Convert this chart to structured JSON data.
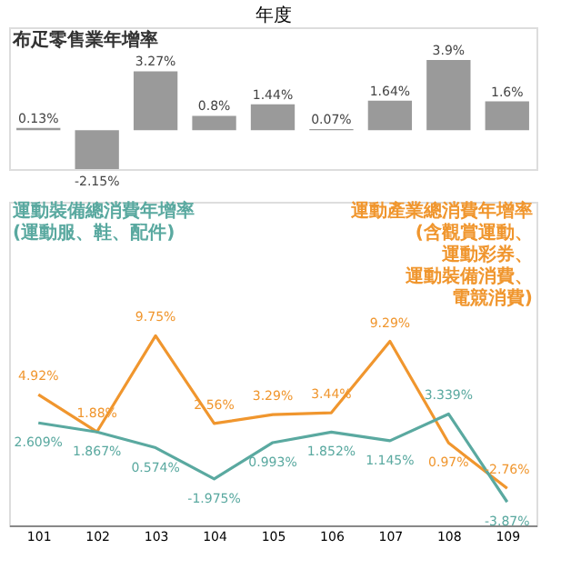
{
  "chart_data": [
    {
      "type": "bar",
      "title": "布疋零售業年增率",
      "xlabel": "年度",
      "categories": [
        "101",
        "102",
        "103",
        "104",
        "105",
        "106",
        "107",
        "108",
        "109"
      ],
      "values": [
        0.13,
        -2.15,
        3.27,
        0.8,
        1.44,
        0.07,
        1.64,
        3.9,
        1.6
      ],
      "value_labels": [
        "0.13%",
        "-2.15%",
        "3.27%",
        "0.8%",
        "1.44%",
        "0.07%",
        "1.64%",
        "3.9%",
        "1.6%"
      ],
      "color": "#9a9a9a",
      "tick_labels": false
    },
    {
      "type": "line",
      "categories": [
        "101",
        "102",
        "103",
        "104",
        "105",
        "106",
        "107",
        "108",
        "109"
      ],
      "tick_labels": "x",
      "line_style": "solid",
      "series": [
        {
          "name": "運動產業總消費年增率(含觀賞運動、運動彩券、運動裝備消費、電競消費)",
          "color": "#f0962e",
          "values": [
            4.92,
            1.88,
            9.75,
            2.56,
            3.29,
            3.44,
            9.29,
            0.97,
            -2.76
          ],
          "value_labels": [
            "4.92%",
            "1.88%",
            "9.75%",
            "2.56%",
            "3.29%",
            "3.44%",
            "9.29%",
            "0.97%",
            "-2.76%"
          ]
        },
        {
          "name": "運動裝備總消費年增率(運動服、鞋、配件)",
          "color": "#5aa9a0",
          "values": [
            2.609,
            1.867,
            0.574,
            -1.975,
            0.993,
            1.852,
            1.145,
            3.339,
            -3.87
          ],
          "value_labels": [
            "2.609%",
            "1.867%",
            "0.574%",
            "-1.975%",
            "0.993%",
            "1.852%",
            "1.145%",
            "3.339%",
            "-3.87%"
          ]
        }
      ]
    }
  ]
}
